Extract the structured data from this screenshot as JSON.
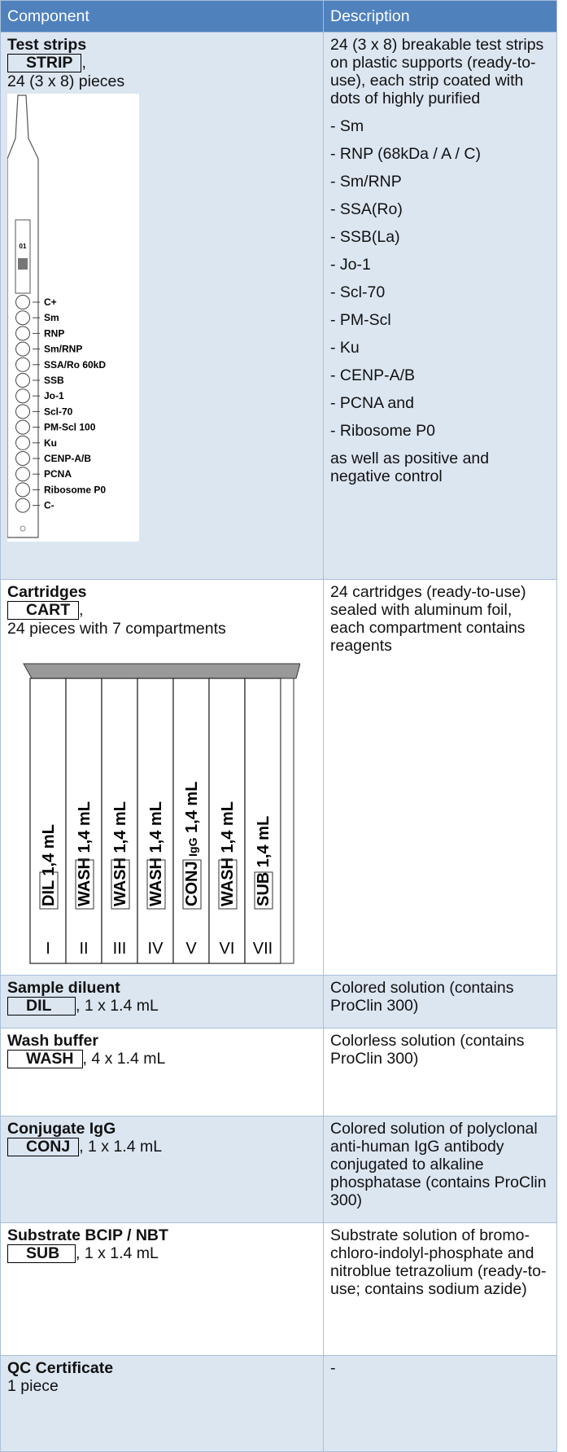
{
  "header": {
    "component": "Component",
    "description": "Description"
  },
  "rows": [
    {
      "title": "Test strips",
      "code": "STRIP",
      "suffix": ",",
      "quantity": "24 (3 x 8) pieces",
      "description": [
        "24 (3 x 8) breakable test strips on plastic supports (ready-to-use), each strip coated with dots of highly purified",
        "- Sm",
        "- RNP (68kDa / A / C)",
        "- Sm/RNP",
        "- SSA(Ro)",
        "- SSB(La)",
        "- Jo-1",
        "- Scl-70",
        "- PM-Scl",
        "- Ku",
        "- CENP-A/B",
        "- PCNA and",
        "- Ribosome P0",
        "as well as positive and negative control"
      ],
      "strip": {
        "lot": "01",
        "labels": [
          "C+",
          "Sm",
          "RNP",
          "Sm/RNP",
          "SSA/Ro 60kD",
          "SSB",
          "Jo-1",
          "Scl-70",
          "PM-Scl 100",
          "Ku",
          "CENP-A/B",
          "PCNA",
          "Ribosome P0",
          "C-"
        ]
      }
    },
    {
      "title": "Cartridges",
      "code": "CART",
      "suffix": ",",
      "quantity": "24 pieces with 7 compartments",
      "description": [
        "24 cartridges (ready-to-use) sealed with aluminum foil, each compartment contains reagents"
      ],
      "cartridge": [
        {
          "code": "DIL",
          "volume": "1,4 mL",
          "number": "I"
        },
        {
          "code": "WASH",
          "volume": "1,4 mL",
          "number": "II"
        },
        {
          "code": "WASH",
          "volume": "1,4 mL",
          "number": "III"
        },
        {
          "code": "WASH",
          "volume": "1,4 mL",
          "number": "IV"
        },
        {
          "code": "CONJ",
          "extra": "IgG",
          "volume": "1,4 mL",
          "number": "V"
        },
        {
          "code": "WASH",
          "volume": "1,4 mL",
          "number": "VI"
        },
        {
          "code": "SUB",
          "volume": "1,4 mL",
          "number": "VII"
        }
      ]
    },
    {
      "title": "Sample diluent",
      "code": "DIL",
      "suffix": ", 1 x 1.4 mL",
      "description": [
        "Colored solution (contains ProClin 300)"
      ]
    },
    {
      "title": "Wash buffer",
      "code": "WASH",
      "suffix": ", 4 x 1.4 mL",
      "description": [
        "Colorless solution (contains ProClin 300)"
      ]
    },
    {
      "title": "Conjugate IgG",
      "code": "CONJ",
      "suffix": ", 1 x 1.4 mL",
      "description": [
        "Colored solution of polyclonal anti-human IgG antibody conjugated to alkaline phosphatase (contains ProClin 300)"
      ]
    },
    {
      "title": "Substrate BCIP / NBT",
      "code": "SUB",
      "suffix": ", 1 x 1.4 mL",
      "description": [
        "Substrate solution of bromo-chloro-indolyl-phosphate and nitroblue tetrazolium (ready-to-use; contains sodium azide)"
      ]
    },
    {
      "title": "QC Certificate",
      "quantity": "1 piece",
      "description": [
        "-"
      ]
    }
  ]
}
